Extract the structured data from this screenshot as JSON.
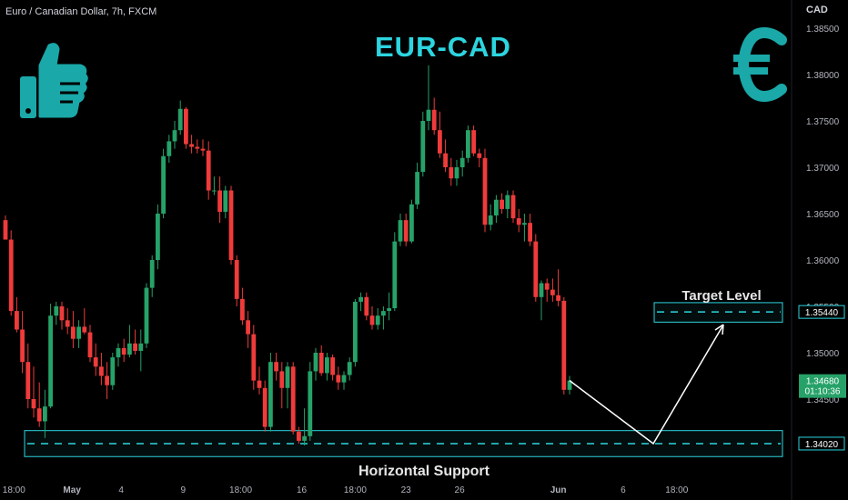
{
  "header": {
    "symbol_label": "Euro / Canadian Dollar, 7h, FXCM",
    "currency": "CAD"
  },
  "colors": {
    "accent": "#2cd5e0",
    "bull": "#26a269",
    "bear": "#ef3b3b",
    "background": "#000000",
    "label_box": "#1f8fa3"
  },
  "icons": [
    "thumbs-up-icon",
    "euro-icon"
  ],
  "chart_data": {
    "type": "candlestick",
    "title": "EUR-CAD",
    "y_ticks": [
      "1.38500",
      "1.38000",
      "1.37500",
      "1.37000",
      "1.36500",
      "1.36000",
      "1.35500",
      "1.35000",
      "1.34500"
    ],
    "y_tick_values": [
      1.385,
      1.38,
      1.375,
      1.37,
      1.365,
      1.36,
      1.355,
      1.35,
      1.345
    ],
    "ylim": [
      1.3385,
      1.3875
    ],
    "x_ticks": [
      "18:00",
      "May",
      "4",
      "9",
      "18:00",
      "16",
      "18:00",
      "23",
      "26",
      "Jun",
      "6",
      "18:00"
    ],
    "x_tick_index": [
      1.5,
      11.8,
      20.5,
      31.5,
      41.7,
      52.5,
      62,
      71,
      80.5,
      98,
      109.5,
      119
    ],
    "candles": [
      [
        1.3643,
        1.3648,
        1.3622,
        1.3622
      ],
      [
        1.3622,
        1.3632,
        1.354,
        1.3545
      ],
      [
        1.3545,
        1.356,
        1.3522,
        1.3525
      ],
      [
        1.3525,
        1.3545,
        1.3478,
        1.349
      ],
      [
        1.349,
        1.351,
        1.344,
        1.345
      ],
      [
        1.345,
        1.3485,
        1.343,
        1.344
      ],
      [
        1.344,
        1.3468,
        1.342,
        1.3426
      ],
      [
        1.3426,
        1.346,
        1.3408,
        1.3442
      ],
      [
        1.3442,
        1.3553,
        1.344,
        1.354
      ],
      [
        1.354,
        1.3555,
        1.353,
        1.355
      ],
      [
        1.355,
        1.3555,
        1.3525,
        1.3535
      ],
      [
        1.3535,
        1.3548,
        1.352,
        1.3528
      ],
      [
        1.3528,
        1.3545,
        1.3505,
        1.3515
      ],
      [
        1.3515,
        1.3535,
        1.3505,
        1.3528
      ],
      [
        1.3528,
        1.3548,
        1.352,
        1.3522
      ],
      [
        1.3522,
        1.353,
        1.349,
        1.3495
      ],
      [
        1.3495,
        1.351,
        1.3475,
        1.3485
      ],
      [
        1.3485,
        1.35,
        1.3465,
        1.3475
      ],
      [
        1.3475,
        1.349,
        1.345,
        1.3465
      ],
      [
        1.3465,
        1.35,
        1.346,
        1.3495
      ],
      [
        1.3495,
        1.351,
        1.3485,
        1.3505
      ],
      [
        1.3505,
        1.3515,
        1.349,
        1.3498
      ],
      [
        1.3498,
        1.353,
        1.3495,
        1.351
      ],
      [
        1.351,
        1.3525,
        1.3498,
        1.3502
      ],
      [
        1.3502,
        1.3525,
        1.348,
        1.351
      ],
      [
        1.351,
        1.3575,
        1.3505,
        1.357
      ],
      [
        1.357,
        1.3605,
        1.356,
        1.36
      ],
      [
        1.36,
        1.366,
        1.359,
        1.365
      ],
      [
        1.365,
        1.372,
        1.3645,
        1.3712
      ],
      [
        1.3712,
        1.3735,
        1.3705,
        1.3728
      ],
      [
        1.3728,
        1.375,
        1.372,
        1.374
      ],
      [
        1.374,
        1.3772,
        1.3735,
        1.3763
      ],
      [
        1.3763,
        1.3765,
        1.372,
        1.3725
      ],
      [
        1.3725,
        1.3735,
        1.3715,
        1.3722
      ],
      [
        1.3722,
        1.373,
        1.3715,
        1.372
      ],
      [
        1.372,
        1.373,
        1.3712,
        1.3718
      ],
      [
        1.3718,
        1.3728,
        1.3665,
        1.3675
      ],
      [
        1.3675,
        1.369,
        1.367,
        1.3675
      ],
      [
        1.3675,
        1.369,
        1.364,
        1.3652
      ],
      [
        1.3652,
        1.368,
        1.3645,
        1.3675
      ],
      [
        1.3675,
        1.368,
        1.3595,
        1.36
      ],
      [
        1.36,
        1.3605,
        1.355,
        1.3558
      ],
      [
        1.3558,
        1.357,
        1.353,
        1.3535
      ],
      [
        1.3535,
        1.3545,
        1.3505,
        1.352
      ],
      [
        1.352,
        1.353,
        1.346,
        1.347
      ],
      [
        1.347,
        1.3485,
        1.3455,
        1.3462
      ],
      [
        1.3462,
        1.347,
        1.3415,
        1.342
      ],
      [
        1.342,
        1.35,
        1.3415,
        1.349
      ],
      [
        1.349,
        1.35,
        1.347,
        1.348
      ],
      [
        1.348,
        1.349,
        1.344,
        1.3462
      ],
      [
        1.3462,
        1.349,
        1.344,
        1.3485
      ],
      [
        1.3485,
        1.349,
        1.3412,
        1.3415
      ],
      [
        1.3415,
        1.342,
        1.3402,
        1.3405
      ],
      [
        1.3405,
        1.344,
        1.34,
        1.341
      ],
      [
        1.341,
        1.349,
        1.3405,
        1.348
      ],
      [
        1.348,
        1.3505,
        1.347,
        1.35
      ],
      [
        1.35,
        1.3508,
        1.3475,
        1.3478
      ],
      [
        1.3478,
        1.35,
        1.347,
        1.3495
      ],
      [
        1.3495,
        1.3498,
        1.347,
        1.3476
      ],
      [
        1.3476,
        1.3485,
        1.346,
        1.3468
      ],
      [
        1.3468,
        1.348,
        1.346,
        1.3476
      ],
      [
        1.3476,
        1.3495,
        1.347,
        1.349
      ],
      [
        1.349,
        1.3558,
        1.3485,
        1.3555
      ],
      [
        1.3555,
        1.3565,
        1.3545,
        1.356
      ],
      [
        1.356,
        1.3565,
        1.3535,
        1.354
      ],
      [
        1.354,
        1.355,
        1.3525,
        1.353
      ],
      [
        1.353,
        1.3548,
        1.3525,
        1.354
      ],
      [
        1.354,
        1.355,
        1.3525,
        1.3545
      ],
      [
        1.3545,
        1.3565,
        1.3535,
        1.3548
      ],
      [
        1.3548,
        1.363,
        1.3545,
        1.362
      ],
      [
        1.362,
        1.365,
        1.3615,
        1.3643
      ],
      [
        1.3643,
        1.365,
        1.3615,
        1.362
      ],
      [
        1.362,
        1.3665,
        1.3618,
        1.366
      ],
      [
        1.366,
        1.3705,
        1.3655,
        1.3695
      ],
      [
        1.3695,
        1.376,
        1.369,
        1.375
      ],
      [
        1.375,
        1.381,
        1.374,
        1.3762
      ],
      [
        1.3762,
        1.3775,
        1.3735,
        1.374
      ],
      [
        1.374,
        1.376,
        1.371,
        1.3715
      ],
      [
        1.3715,
        1.373,
        1.3695,
        1.37
      ],
      [
        1.37,
        1.371,
        1.368,
        1.3688
      ],
      [
        1.3688,
        1.3708,
        1.368,
        1.37
      ],
      [
        1.37,
        1.3718,
        1.369,
        1.371
      ],
      [
        1.371,
        1.3745,
        1.3705,
        1.374
      ],
      [
        1.374,
        1.3745,
        1.3712,
        1.3715
      ],
      [
        1.3715,
        1.372,
        1.37,
        1.371
      ],
      [
        1.371,
        1.372,
        1.363,
        1.3638
      ],
      [
        1.3638,
        1.366,
        1.3632,
        1.3648
      ],
      [
        1.3648,
        1.367,
        1.364,
        1.3665
      ],
      [
        1.3665,
        1.3672,
        1.365,
        1.3655
      ],
      [
        1.3655,
        1.3675,
        1.3645,
        1.367
      ],
      [
        1.367,
        1.3675,
        1.364,
        1.3645
      ],
      [
        1.3645,
        1.3655,
        1.363,
        1.3638
      ],
      [
        1.3638,
        1.365,
        1.362,
        1.364
      ],
      [
        1.364,
        1.365,
        1.3615,
        1.362
      ],
      [
        1.362,
        1.3628,
        1.3555,
        1.356
      ],
      [
        1.356,
        1.3578,
        1.3535,
        1.3575
      ],
      [
        1.3575,
        1.358,
        1.3555,
        1.3568
      ],
      [
        1.3568,
        1.358,
        1.3555,
        1.3562
      ],
      [
        1.3562,
        1.359,
        1.355,
        1.3556
      ],
      [
        1.3556,
        1.356,
        1.3455,
        1.346
      ],
      [
        1.346,
        1.3475,
        1.3455,
        1.347
      ]
    ],
    "annotations": {
      "support": {
        "label": "Horizontal Support",
        "price_label": "1.34020",
        "value": 1.3402,
        "zone": [
          1.3388,
          1.3416
        ]
      },
      "target": {
        "label": "Target Level",
        "price_label": "1.35440",
        "value": 1.3544,
        "zone": [
          1.3533,
          1.3554
        ]
      },
      "current": {
        "price_label": "1.34680",
        "countdown": "01:10:36",
        "value": 1.3468
      },
      "projection": [
        [
          1.347,
          1.347,
          1.3402,
          1.353
        ]
      ]
    }
  }
}
